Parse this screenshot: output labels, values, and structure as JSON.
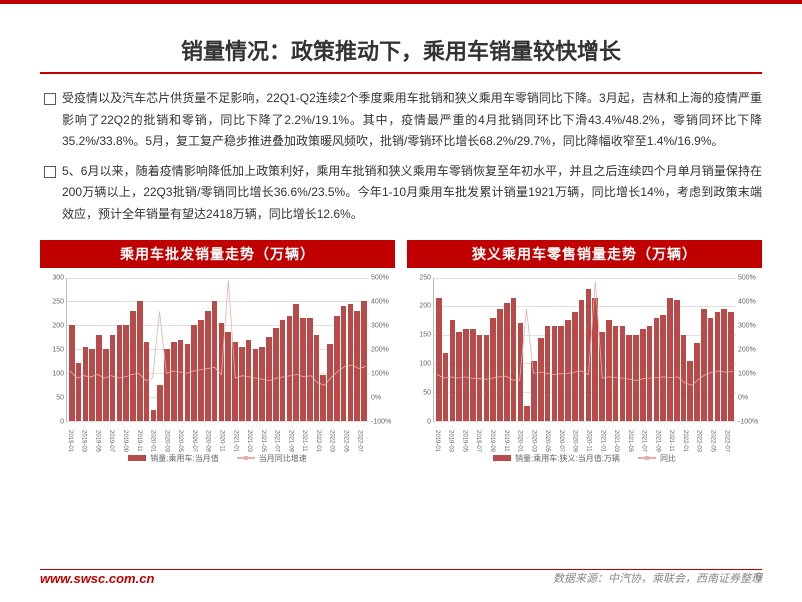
{
  "title": "销量情况：政策推动下，乘用车销量较快增长",
  "bullets": [
    "受疫情以及汽车芯片供货量不足影响，22Q1-Q2连续2个季度乘用车批销和狭义乘用车零销同比下降。3月起，吉林和上海的疫情严重影响了22Q2的批销和零销，同比下降了2.2%/19.1%。其中，疫情最严重的4月批销同环比下滑43.4%/48.2%，零销同环比下降35.2%/33.8%。5月，复工复产稳步推进叠加政策暖风频吹，批销/零销环比增长68.2%/29.7%，同比降幅收窄至1.4%/16.9%。",
    "5、6月以来，随着疫情影响降低加上政策利好，乘用车批销和狭义乘用车零销恢复至年初水平，并且之后连续四个月单月销量保持在200万辆以上，22Q3批销/零销同比增长36.6%/23.5%。今年1-10月乘用车批发累计销量1921万辆，同比增长14%，考虑到政策末端效应，预计全年销量有望达2418万辆，同比增长12.6%。"
  ],
  "chart_left": {
    "caption": "乘用车批发销量走势（万辆）",
    "y_left": {
      "min": 0,
      "max": 300,
      "step": 50
    },
    "y_right": {
      "min": -100,
      "max": 500,
      "step": 100,
      "suffix": "%"
    },
    "bar_color": "#b84a4a",
    "line_color": "#e8b0a8",
    "grid_color": "#e0e0e0",
    "x_labels": [
      "2019-01",
      "2019-03",
      "2019-05",
      "2019-07",
      "2019-09",
      "2019-11",
      "2020-01",
      "2020-03",
      "2020-05",
      "2020-07",
      "2020-09",
      "2020-11",
      "2021-01",
      "2021-03",
      "2021-05",
      "2021-07",
      "2021-09",
      "2021-11",
      "2022-01",
      "2022-03",
      "2022-05",
      "2022-07",
      "2022-09"
    ],
    "bars": [
      200,
      120,
      155,
      150,
      180,
      150,
      180,
      200,
      200,
      230,
      250,
      165,
      22,
      75,
      150,
      165,
      170,
      160,
      200,
      210,
      230,
      250,
      205,
      185,
      165,
      155,
      170,
      150,
      155,
      175,
      195,
      210,
      220,
      245,
      215,
      215,
      180,
      95,
      160,
      220,
      240,
      245,
      230,
      250
    ],
    "line": [
      110,
      80,
      90,
      85,
      95,
      80,
      90,
      80,
      85,
      95,
      100,
      70,
      80,
      360,
      100,
      110,
      105,
      100,
      110,
      115,
      120,
      125,
      95,
      490,
      80,
      90,
      85,
      80,
      75,
      70,
      80,
      85,
      90,
      95,
      85,
      90,
      60,
      50,
      85,
      110,
      130,
      135,
      120,
      130
    ],
    "legend_bar": "销量:乘用车:当月值",
    "legend_line": "当月同比增速"
  },
  "chart_right": {
    "caption": "狭义乘用车零售销量走势（万辆）",
    "y_left": {
      "min": 0,
      "max": 250,
      "step": 50
    },
    "y_right": {
      "min": -100,
      "max": 500,
      "step": 100,
      "suffix": "%"
    },
    "bar_color": "#b84a4a",
    "line_color": "#e8b0a8",
    "grid_color": "#e0e0e0",
    "x_labels": [
      "2019-01",
      "2019-03",
      "2019-05",
      "2019-07",
      "2019-09",
      "2019-11",
      "2020-01",
      "2020-03",
      "2020-05",
      "2020-07",
      "2020-09",
      "2020-11",
      "2021-01",
      "2021-03",
      "2021-05",
      "2021-07",
      "2021-09",
      "2021-11",
      "2022-01",
      "2022-03",
      "2022-05",
      "2022-07",
      "2022-09"
    ],
    "bars": [
      215,
      118,
      175,
      155,
      160,
      160,
      150,
      150,
      180,
      195,
      205,
      215,
      170,
      25,
      105,
      145,
      165,
      165,
      165,
      175,
      190,
      210,
      230,
      215,
      155,
      175,
      165,
      165,
      150,
      150,
      160,
      165,
      180,
      185,
      215,
      210,
      150,
      105,
      135,
      195,
      180,
      190,
      195,
      190
    ],
    "line": [
      95,
      80,
      85,
      80,
      85,
      80,
      78,
      75,
      80,
      85,
      88,
      72,
      70,
      370,
      100,
      105,
      100,
      95,
      98,
      100,
      105,
      110,
      95,
      485,
      80,
      85,
      82,
      80,
      75,
      70,
      78,
      80,
      82,
      85,
      82,
      85,
      60,
      50,
      75,
      95,
      105,
      110,
      105,
      108
    ],
    "legend_bar": "销量:乘用车:狭义:当月值:万辆",
    "legend_line": "同比"
  },
  "footer": {
    "site": "www.swsc.com.cn",
    "source": "数据来源：中汽协，乘联会，西南证券整理",
    "page": "6"
  }
}
